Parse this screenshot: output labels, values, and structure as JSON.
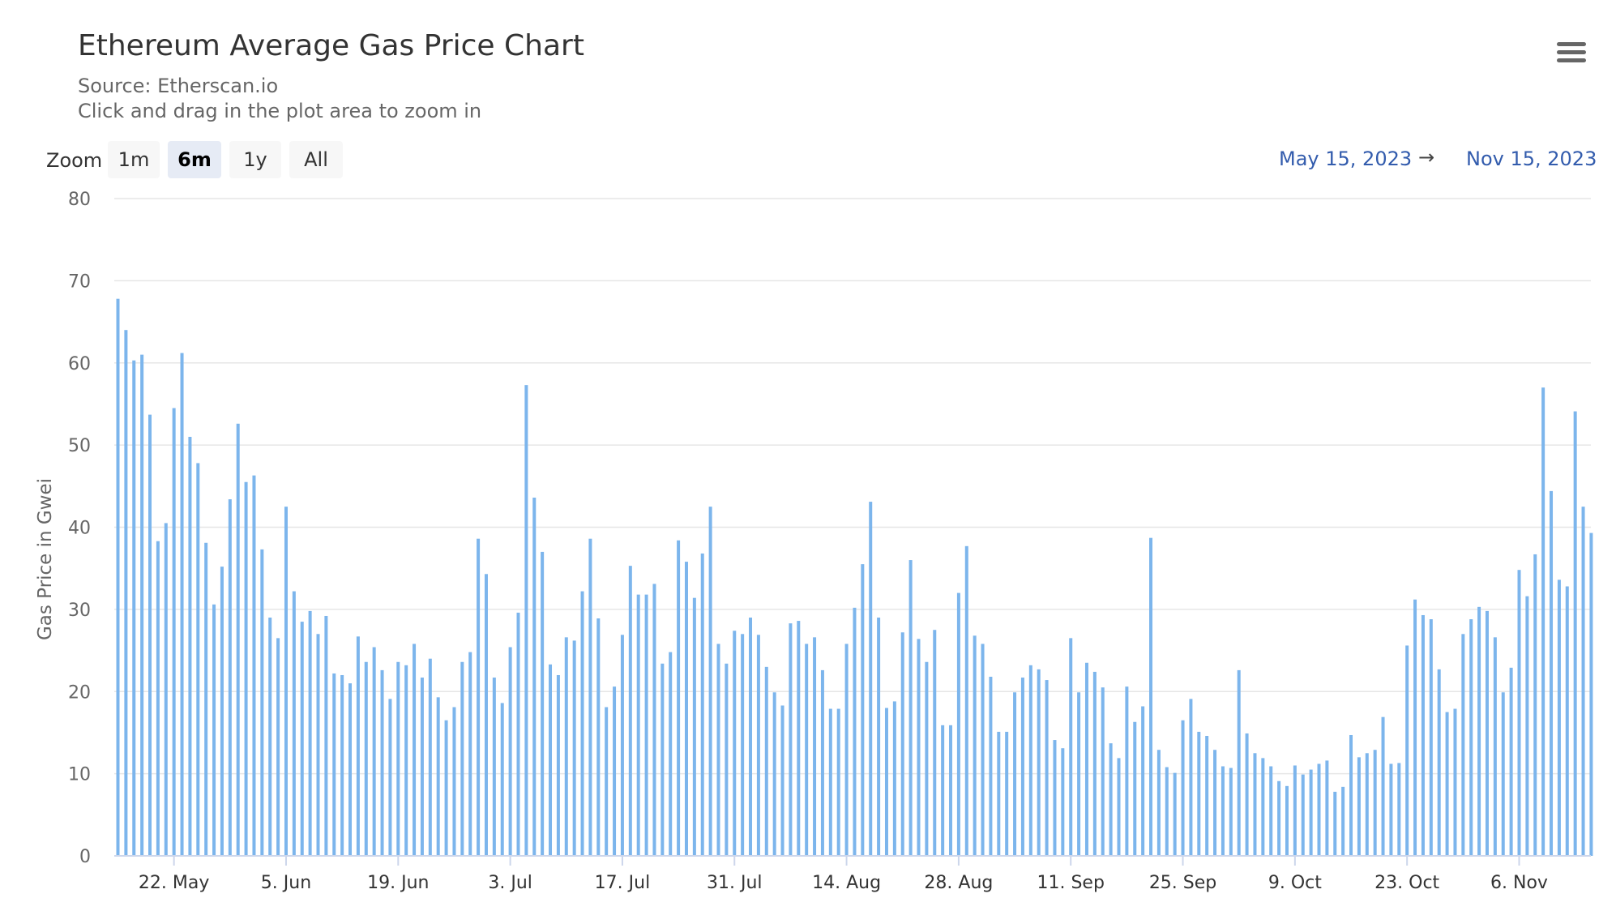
{
  "header": {
    "title": "Ethereum Average Gas Price Chart",
    "source": "Source: Etherscan.io",
    "hint": "Click and drag in the plot area to zoom in"
  },
  "menu": {
    "icon": "hamburger-menu-icon"
  },
  "zoom": {
    "label": "Zoom",
    "buttons": [
      "1m",
      "6m",
      "1y",
      "All"
    ],
    "selected": "6m"
  },
  "range": {
    "from": "May 15, 2023",
    "arrow": "→",
    "to": "Nov 15, 2023"
  },
  "colors": {
    "bar": "#7cb5ec",
    "grid": "#e6e6e6",
    "axis": "#ccd6eb",
    "text": "#666666",
    "range": "#335cad"
  },
  "chart_data": {
    "type": "bar",
    "ylabel": "Gas Price in Gwei",
    "ylim": [
      0,
      80
    ],
    "yticks": [
      0,
      10,
      20,
      30,
      40,
      50,
      60,
      70,
      80
    ],
    "x_start": "2023-05-15",
    "xticks": [
      {
        "label": "22. May",
        "date": "2023-05-22"
      },
      {
        "label": "5. Jun",
        "date": "2023-06-05"
      },
      {
        "label": "19. Jun",
        "date": "2023-06-19"
      },
      {
        "label": "3. Jul",
        "date": "2023-07-03"
      },
      {
        "label": "17. Jul",
        "date": "2023-07-17"
      },
      {
        "label": "31. Jul",
        "date": "2023-07-31"
      },
      {
        "label": "14. Aug",
        "date": "2023-08-14"
      },
      {
        "label": "28. Aug",
        "date": "2023-08-28"
      },
      {
        "label": "11. Sep",
        "date": "2023-09-11"
      },
      {
        "label": "25. Sep",
        "date": "2023-09-25"
      },
      {
        "label": "9. Oct",
        "date": "2023-10-09"
      },
      {
        "label": "23. Oct",
        "date": "2023-10-23"
      },
      {
        "label": "6. Nov",
        "date": "2023-11-06"
      }
    ],
    "grid": true,
    "legend": false,
    "series": [
      {
        "values": [
          67.8,
          64.0,
          60.3,
          61.0,
          53.7,
          38.3,
          40.5,
          54.5,
          61.2,
          51.0,
          47.8,
          38.1,
          30.6,
          35.2,
          43.4,
          52.6,
          45.5,
          46.3,
          37.3,
          29.0,
          26.5,
          42.5,
          32.2,
          28.5,
          29.8,
          27.0,
          29.2,
          22.2,
          22.0,
          21.0,
          26.7,
          23.6,
          25.4,
          22.6,
          19.1,
          23.6,
          23.2,
          25.8,
          21.7,
          24.0,
          19.3,
          16.5,
          18.1,
          23.6,
          24.8,
          38.6,
          34.3,
          21.7,
          18.6,
          25.4,
          29.6,
          57.3,
          43.6,
          37.0,
          23.3,
          22.0,
          26.6,
          26.2,
          32.2,
          38.6,
          28.9,
          18.1,
          20.6,
          26.9,
          35.3,
          31.8,
          31.8,
          33.1,
          23.4,
          24.8,
          38.4,
          35.8,
          31.4,
          36.8,
          42.5,
          25.8,
          23.4,
          27.4,
          27.0,
          29.0,
          26.9,
          23.0,
          19.9,
          18.3,
          28.3,
          28.6,
          25.8,
          26.6,
          22.6,
          17.9,
          17.9,
          25.8,
          30.2,
          35.5,
          43.1,
          29.0,
          18.0,
          18.8,
          27.2,
          36.0,
          26.4,
          23.6,
          27.5,
          15.9,
          15.9,
          32.0,
          37.7,
          26.8,
          25.8,
          21.8,
          15.1,
          15.1,
          19.9,
          21.7,
          23.2,
          22.7,
          21.4,
          14.1,
          13.1,
          26.5,
          19.9,
          23.5,
          22.4,
          20.5,
          13.7,
          11.9,
          20.6,
          16.3,
          18.2,
          38.7,
          12.9,
          10.8,
          10.1,
          16.5,
          19.1,
          15.1,
          14.6,
          12.9,
          10.9,
          10.7,
          22.6,
          14.9,
          12.5,
          11.9,
          10.9,
          9.1,
          8.5,
          11.0,
          9.9,
          10.5,
          11.2,
          11.6,
          7.8,
          8.4,
          14.7,
          12.0,
          12.5,
          12.9,
          16.9,
          11.2,
          11.3,
          25.6,
          31.2,
          29.3,
          28.8,
          22.7,
          17.5,
          17.9,
          27.0,
          28.8,
          30.3,
          29.8,
          26.6,
          19.9,
          22.9,
          34.8,
          31.6,
          36.7,
          57.0,
          44.4,
          33.6,
          32.8,
          54.1,
          42.5,
          39.3
        ]
      }
    ]
  }
}
